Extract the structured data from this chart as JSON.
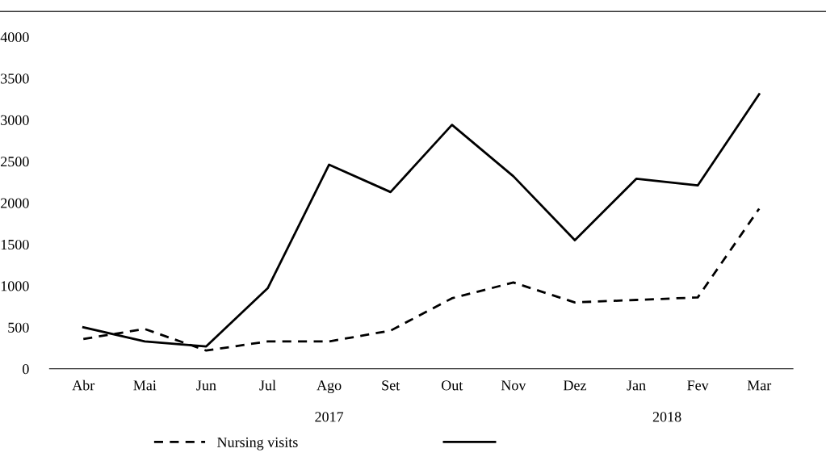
{
  "chart_data": {
    "type": "line",
    "categories": [
      "Abr",
      "Mai",
      "Jun",
      "Jul",
      "Ago",
      "Set",
      "Out",
      "Nov",
      "Dez",
      "Jan",
      "Fev",
      "Mar"
    ],
    "series": [
      {
        "name": "Nursing visits",
        "color": "#000000",
        "line_style": "dashed",
        "values": [
          360,
          480,
          220,
          330,
          330,
          460,
          850,
          1040,
          800,
          830,
          860,
          1930
        ]
      },
      {
        "color": "#000000",
        "line_style": "solid",
        "values": [
          500,
          330,
          270,
          970,
          2460,
          2130,
          2940,
          2320,
          1550,
          2290,
          2210,
          3310
        ]
      }
    ],
    "ylim": [
      0,
      4000
    ],
    "yticks": [
      0,
      500,
      1000,
      1500,
      2000,
      2500,
      3000,
      3500,
      4000
    ],
    "grid": false,
    "legend": "bottom",
    "marker": "none",
    "annotations": [
      "2017",
      "2018"
    ]
  }
}
